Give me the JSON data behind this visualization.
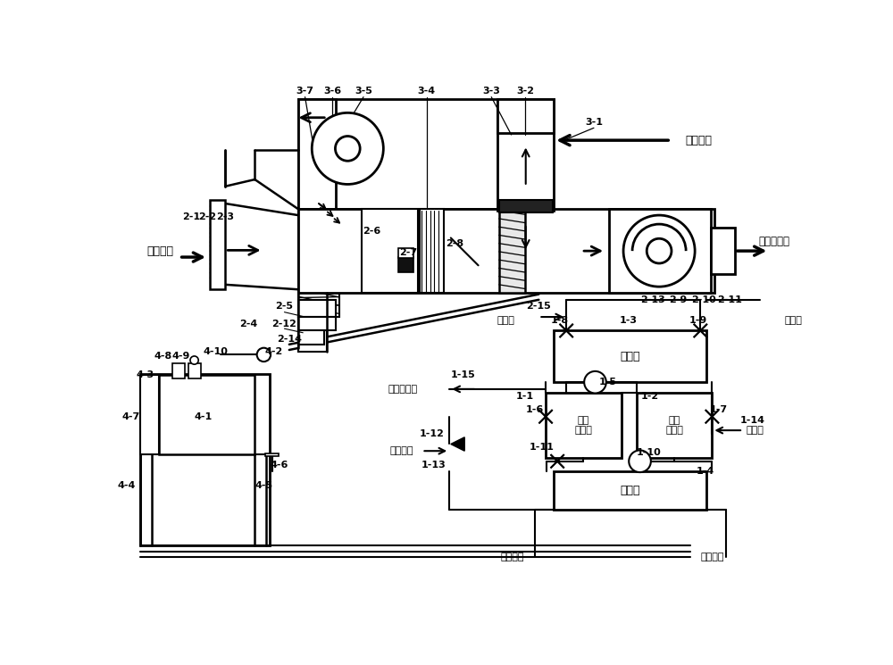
{
  "bg_color": "#ffffff",
  "lw": 1.5,
  "labels": {
    "outdoor_fresh": "室外新风",
    "indoor_return": "室内回风",
    "processed_fresh": "处理后新风",
    "cooling_water_in": "冷却水",
    "cooling_water_out": "冷却水",
    "waste_water": "冷却后废水",
    "waste_heat": "废热水源",
    "cold_supply": "冷冻供水",
    "cold_return": "冷冻回水",
    "condenser": "冷凝器",
    "evaporator": "蒸发器",
    "bed1": "第一\n吸附床",
    "bed2": "第二\n吸附床"
  }
}
